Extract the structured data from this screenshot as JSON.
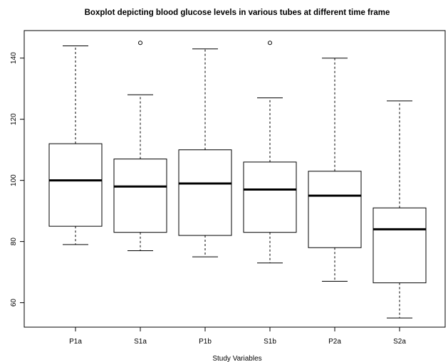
{
  "chart_data": {
    "type": "boxplot",
    "title": "Boxplot depicting blood glucose levels in various tubes at different time frame",
    "xlabel": "Study Variables",
    "ylabel": "",
    "ylim": [
      52,
      149
    ],
    "yticks": [
      60,
      80,
      100,
      120,
      140
    ],
    "grid": false,
    "categories": [
      "P1a",
      "S1a",
      "P1b",
      "S1b",
      "P2a",
      "S2a"
    ],
    "boxes": [
      {
        "name": "P1a",
        "whisker_low": 79,
        "q1": 85,
        "median": 100,
        "q3": 112,
        "whisker_high": 144,
        "outliers": []
      },
      {
        "name": "S1a",
        "whisker_low": 77,
        "q1": 83,
        "median": 98,
        "q3": 107,
        "whisker_high": 128,
        "outliers": [
          145
        ]
      },
      {
        "name": "P1b",
        "whisker_low": 75,
        "q1": 82,
        "median": 99,
        "q3": 110,
        "whisker_high": 143,
        "outliers": []
      },
      {
        "name": "S1b",
        "whisker_low": 73,
        "q1": 83,
        "median": 97,
        "q3": 106,
        "whisker_high": 127,
        "outliers": [
          145
        ]
      },
      {
        "name": "P2a",
        "whisker_low": 67,
        "q1": 78,
        "median": 95,
        "q3": 103,
        "whisker_high": 140,
        "outliers": []
      },
      {
        "name": "S2a",
        "whisker_low": 55,
        "q1": 66.5,
        "median": 84,
        "q3": 91,
        "whisker_high": 126,
        "outliers": []
      }
    ]
  }
}
